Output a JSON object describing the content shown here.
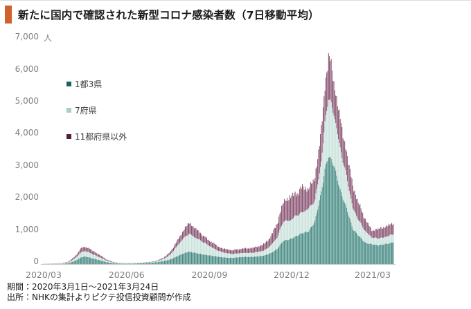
{
  "header": {
    "title": "新たに国内で確認された新型コロナ感染者数（7日移動平均）",
    "accent_color": "#d2602c"
  },
  "footer": {
    "period": "期間：2020年3月1日～2021年3月24日",
    "source": "出所：NHKの集計よりピクテ投信投資顧問が作成"
  },
  "chart_data": {
    "type": "bar",
    "stacked": true,
    "title": "新たに国内で確認された新型コロナ感染者数（7日移動平均）",
    "unit": "人",
    "ylim": [
      0,
      7000
    ],
    "grid": false,
    "legend_position": "upper-left",
    "y_ticks": [
      {
        "label": "0",
        "value": 0
      },
      {
        "label": "1,000",
        "value": 1000
      },
      {
        "label": "2,000",
        "value": 2000
      },
      {
        "label": "3,000",
        "value": 3000
      },
      {
        "label": "4,000",
        "value": 4000
      },
      {
        "label": "5,000",
        "value": 5000
      },
      {
        "label": "6,000",
        "value": 6000
      },
      {
        "label": "7,000",
        "value": 7000
      }
    ],
    "x_ticks": [
      {
        "label": "2020/03",
        "date": "2020-03-01"
      },
      {
        "label": "2020/06",
        "date": "2020-06-01"
      },
      {
        "label": "2020/09",
        "date": "2020-09-01"
      },
      {
        "label": "2020/12",
        "date": "2020-12-01"
      },
      {
        "label": "2021/03",
        "date": "2021-03-01"
      }
    ],
    "x_range": [
      "2020-03-01",
      "2021-03-24"
    ],
    "sample_dates": [
      "2020-03-01",
      "2020-03-08",
      "2020-03-15",
      "2020-03-22",
      "2020-03-29",
      "2020-04-05",
      "2020-04-12",
      "2020-04-15",
      "2020-04-19",
      "2020-04-26",
      "2020-05-03",
      "2020-05-10",
      "2020-05-17",
      "2020-05-24",
      "2020-05-31",
      "2020-06-07",
      "2020-06-14",
      "2020-06-21",
      "2020-06-28",
      "2020-07-05",
      "2020-07-12",
      "2020-07-19",
      "2020-07-26",
      "2020-08-02",
      "2020-08-09",
      "2020-08-16",
      "2020-08-23",
      "2020-08-30",
      "2020-09-06",
      "2020-09-13",
      "2020-09-20",
      "2020-09-27",
      "2020-10-04",
      "2020-10-11",
      "2020-10-18",
      "2020-10-25",
      "2020-11-01",
      "2020-11-08",
      "2020-11-15",
      "2020-11-22",
      "2020-11-29",
      "2020-12-06",
      "2020-12-13",
      "2020-12-20",
      "2020-12-27",
      "2021-01-03",
      "2021-01-07",
      "2021-01-11",
      "2021-01-17",
      "2021-01-24",
      "2021-01-31",
      "2021-02-07",
      "2021-02-14",
      "2021-02-21",
      "2021-02-28",
      "2021-03-07",
      "2021-03-14",
      "2021-03-21",
      "2021-03-24"
    ],
    "series": [
      {
        "name": "1都3県",
        "legend_color": "#16655f",
        "bar_color": "#2c7a72",
        "values": [
          8,
          10,
          14,
          18,
          40,
          115,
          225,
          245,
          230,
          175,
          125,
          70,
          38,
          25,
          22,
          25,
          31,
          40,
          52,
          70,
          105,
          150,
          240,
          330,
          400,
          360,
          320,
          290,
          260,
          230,
          210,
          205,
          225,
          235,
          235,
          250,
          280,
          350,
          480,
          740,
          780,
          880,
          980,
          1030,
          1350,
          2250,
          2950,
          3390,
          3100,
          2300,
          1750,
          1100,
          880,
          670,
          630,
          595,
          630,
          665,
          700
        ]
      },
      {
        "name": "7府県",
        "legend_color": "#a9cec6",
        "bar_color": "#c2ddd6",
        "values": [
          7,
          9,
          12,
          13,
          28,
          80,
          160,
          170,
          162,
          125,
          87,
          45,
          21,
          11,
          9,
          8,
          9,
          11,
          16,
          30,
          65,
          140,
          290,
          450,
          560,
          480,
          410,
          320,
          230,
          170,
          140,
          120,
          125,
          125,
          125,
          140,
          160,
          240,
          360,
          610,
          580,
          640,
          640,
          715,
          650,
          950,
          1450,
          1830,
          1600,
          1300,
          1000,
          650,
          470,
          360,
          215,
          215,
          215,
          250,
          250
        ]
      },
      {
        "name": "11都府県以外",
        "legend_color": "#571f3d",
        "bar_color": "#77395c",
        "values": [
          5,
          6,
          9,
          9,
          22,
          65,
          125,
          135,
          128,
          100,
          68,
          35,
          16,
          9,
          7,
          7,
          8,
          9,
          12,
          20,
          40,
          80,
          150,
          230,
          340,
          290,
          220,
          170,
          160,
          120,
          120,
          115,
          130,
          140,
          150,
          170,
          200,
          280,
          440,
          600,
          740,
          680,
          780,
          615,
          700,
          1000,
          1100,
          1360,
          1000,
          900,
          750,
          700,
          500,
          370,
          215,
          290,
          325,
          325,
          360
        ]
      }
    ]
  }
}
